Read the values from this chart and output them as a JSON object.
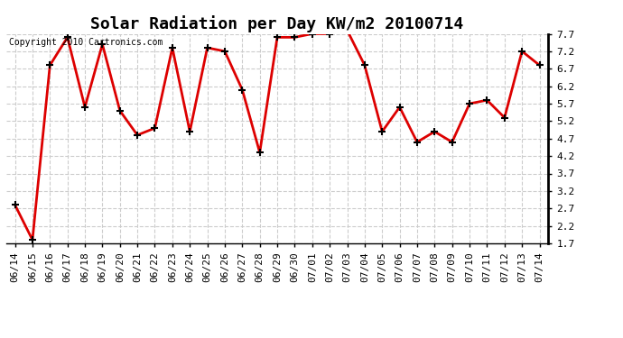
{
  "title": "Solar Radiation per Day KW/m2 20100714",
  "copyright": "Copyright 2010 Cartronics.com",
  "dates": [
    "06/14",
    "06/15",
    "06/16",
    "06/17",
    "06/18",
    "06/19",
    "06/20",
    "06/21",
    "06/22",
    "06/23",
    "06/24",
    "06/25",
    "06/26",
    "06/27",
    "06/28",
    "06/29",
    "06/30",
    "07/01",
    "07/02",
    "07/03",
    "07/04",
    "07/05",
    "07/06",
    "07/07",
    "07/08",
    "07/09",
    "07/10",
    "07/11",
    "07/12",
    "07/13",
    "07/14"
  ],
  "values": [
    2.8,
    1.8,
    6.8,
    7.6,
    5.6,
    7.4,
    5.5,
    4.8,
    5.0,
    7.3,
    4.9,
    7.3,
    7.2,
    6.1,
    4.3,
    7.6,
    7.6,
    7.7,
    7.7,
    7.8,
    6.8,
    4.9,
    5.6,
    4.6,
    4.9,
    4.6,
    5.7,
    5.8,
    5.3,
    7.2,
    6.8
  ],
  "line_color": "#dd0000",
  "marker": "+",
  "marker_size": 6,
  "marker_linewidth": 1.5,
  "bg_color": "#ffffff",
  "grid_color": "#cccccc",
  "ylim": [
    1.7,
    7.7
  ],
  "yticks": [
    1.7,
    2.2,
    2.7,
    3.2,
    3.7,
    4.2,
    4.7,
    5.2,
    5.7,
    6.2,
    6.7,
    7.2,
    7.7
  ],
  "title_fontsize": 13,
  "copyright_fontsize": 7,
  "tick_fontsize": 8,
  "linewidth": 2.0
}
